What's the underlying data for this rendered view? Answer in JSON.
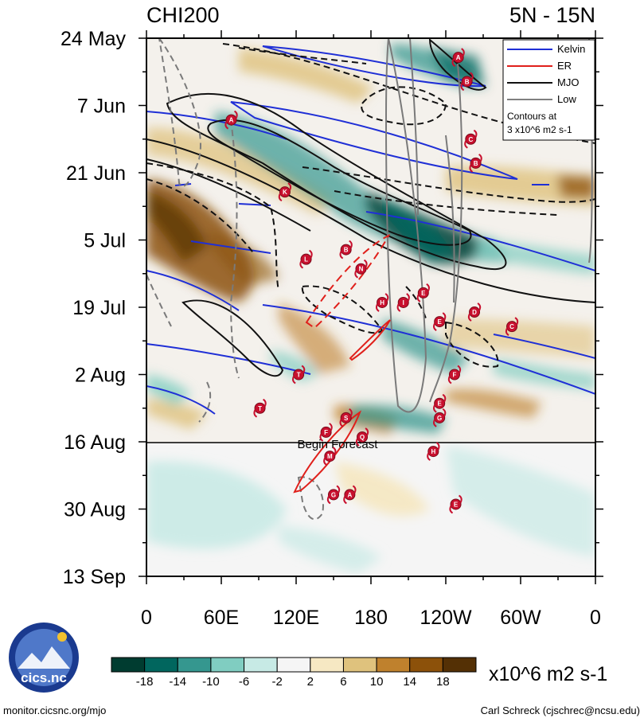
{
  "chart_data": {
    "type": "heatmap",
    "title_left": "CHI200",
    "title_right": "5N - 15N",
    "y_labels": [
      "24 May",
      "7 Jun",
      "21 Jun",
      "5 Jul",
      "19 Jul",
      "2 Aug",
      "16 Aug",
      "30 Aug",
      "13 Sep"
    ],
    "x_labels": [
      "0",
      "60E",
      "120E",
      "180",
      "120W",
      "60W",
      "0"
    ],
    "x_range_deg": [
      0,
      360
    ],
    "y_range_days": [
      0,
      112
    ],
    "forecast_label": "Begin Forecast",
    "forecast_day": 84,
    "legend": {
      "entries": [
        {
          "name": "Kelvin",
          "color": "#1f2fd6",
          "style": "solid"
        },
        {
          "name": "ER",
          "color": "#e0201b",
          "style": "solid"
        },
        {
          "name": "MJO",
          "color": "#111111",
          "style": "solid"
        },
        {
          "name": "Low",
          "color": "#808080",
          "style": "solid"
        }
      ],
      "note_line1": "Contours at",
      "note_line2": "3 x10^6 m2 s-1",
      "placement": "top-right"
    },
    "colorbar": {
      "colors": [
        "#003c30",
        "#01665e",
        "#35978f",
        "#80cdc1",
        "#c7eae5",
        "#f5f5f5",
        "#f6e8c3",
        "#dfc27d",
        "#bf812d",
        "#8c510a",
        "#543005"
      ],
      "ticks": [
        "-18",
        "-14",
        "-10",
        "-6",
        "-2",
        "2",
        "6",
        "10",
        "14",
        "18"
      ],
      "units": "x10^6 m2 s-1"
    },
    "storms": [
      {
        "letter": "A",
        "lon": 250,
        "day": 4
      },
      {
        "letter": "B",
        "lon": 257,
        "day": 9
      },
      {
        "letter": "A",
        "lon": 68,
        "day": 17
      },
      {
        "letter": "C",
        "lon": 260,
        "day": 21
      },
      {
        "letter": "B",
        "lon": 264,
        "day": 26
      },
      {
        "letter": "K",
        "lon": 111,
        "day": 32
      },
      {
        "letter": "B",
        "lon": 160,
        "day": 44
      },
      {
        "letter": "L",
        "lon": 128,
        "day": 46
      },
      {
        "letter": "N",
        "lon": 172,
        "day": 48
      },
      {
        "letter": "E",
        "lon": 222,
        "day": 53
      },
      {
        "letter": "H",
        "lon": 189,
        "day": 55
      },
      {
        "letter": "I",
        "lon": 206,
        "day": 55
      },
      {
        "letter": "D",
        "lon": 263,
        "day": 57
      },
      {
        "letter": "E",
        "lon": 235,
        "day": 59
      },
      {
        "letter": "C",
        "lon": 293,
        "day": 60
      },
      {
        "letter": "T",
        "lon": 122,
        "day": 70
      },
      {
        "letter": "F",
        "lon": 247,
        "day": 70
      },
      {
        "letter": "T",
        "lon": 91,
        "day": 77
      },
      {
        "letter": "E",
        "lon": 235,
        "day": 76
      },
      {
        "letter": "S",
        "lon": 160,
        "day": 79
      },
      {
        "letter": "G",
        "lon": 235,
        "day": 79
      },
      {
        "letter": "F",
        "lon": 144,
        "day": 82
      },
      {
        "letter": "Q",
        "lon": 173,
        "day": 83
      },
      {
        "letter": "H",
        "lon": 230,
        "day": 86
      },
      {
        "letter": "M",
        "lon": 147,
        "day": 87
      },
      {
        "letter": "G",
        "lon": 150,
        "day": 95
      },
      {
        "letter": "A",
        "lon": 163,
        "day": 95
      },
      {
        "letter": "E",
        "lon": 248,
        "day": 97
      }
    ]
  },
  "logo": {
    "text": "cics.nc"
  },
  "footer": {
    "left": "monitor.cicsnc.org/mjo",
    "right": "Carl Schreck (cjschrec@ncsu.edu)"
  }
}
